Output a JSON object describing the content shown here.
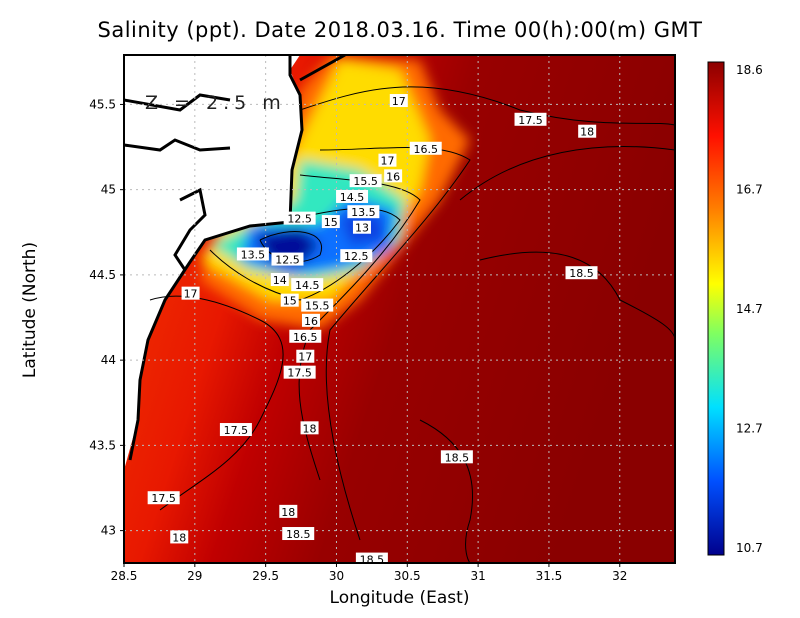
{
  "chart_data": {
    "type": "heatmap",
    "title": "Salinity (ppt). Date 2018.03.16. Time 00(h):00(m) GMT",
    "xlabel": "Longitude (East)",
    "ylabel": "Latitude (North)",
    "annotation": "Z = 2.5 m",
    "xlim": [
      28.5,
      32.39
    ],
    "ylim": [
      42.81,
      45.79
    ],
    "xticks": [
      "28.5",
      "29",
      "29.5",
      "30",
      "30.5",
      "31",
      "31.5",
      "32"
    ],
    "xtick_values": [
      28.5,
      29,
      29.5,
      30,
      30.5,
      31,
      31.5,
      32
    ],
    "yticks": [
      "43",
      "43.5",
      "44",
      "44.5",
      "45",
      "45.5"
    ],
    "ytick_values": [
      43,
      43.5,
      44,
      44.5,
      45,
      45.5
    ],
    "grid": true,
    "colorbar": {
      "min": 10.7,
      "max": 18.6,
      "labels": [
        "18.6",
        "16.7",
        "14.7",
        "12.7",
        "10.7"
      ],
      "colors": [
        "#00008c",
        "#0050ff",
        "#00e0ff",
        "#80ff60",
        "#ffff00",
        "#ff8000",
        "#ff1000",
        "#8c0000"
      ]
    },
    "contour_labels": [
      {
        "text": "17",
        "lon": 30.44,
        "lat": 45.52
      },
      {
        "text": "17.5",
        "lon": 31.37,
        "lat": 45.41
      },
      {
        "text": "18",
        "lon": 31.77,
        "lat": 45.34
      },
      {
        "text": "16.5",
        "lon": 30.63,
        "lat": 45.24
      },
      {
        "text": "17",
        "lon": 30.36,
        "lat": 45.17
      },
      {
        "text": "16",
        "lon": 30.4,
        "lat": 45.09
      },
      {
        "text": "15.5",
        "lon": 30.22,
        "lat": 45.05
      },
      {
        "text": "14.5",
        "lon": 30.11,
        "lat": 45.01
      },
      {
        "text": "13.5",
        "lon": 30.19,
        "lat": 44.95
      },
      {
        "text": "13",
        "lon": 30.18,
        "lat": 44.9
      },
      {
        "text": "12.5",
        "lon": 29.74,
        "lat": 44.83
      },
      {
        "text": "15",
        "lon": 29.96,
        "lat": 44.81
      },
      {
        "text": "13.5",
        "lon": 29.41,
        "lat": 44.62
      },
      {
        "text": "12.5",
        "lon": 29.64,
        "lat": 44.59
      },
      {
        "text": "12.5",
        "lon": 30.14,
        "lat": 44.61
      },
      {
        "text": "14",
        "lon": 29.6,
        "lat": 44.47
      },
      {
        "text": "14.5",
        "lon": 29.73,
        "lat": 44.44
      },
      {
        "text": "15",
        "lon": 29.67,
        "lat": 44.39
      },
      {
        "text": "17",
        "lon": 28.97,
        "lat": 44.39
      },
      {
        "text": "18.5",
        "lon": 31.73,
        "lat": 44.51
      },
      {
        "text": "15.5",
        "lon": 29.85,
        "lat": 44.32
      },
      {
        "text": "16",
        "lon": 29.82,
        "lat": 44.26
      },
      {
        "text": "16.5",
        "lon": 29.78,
        "lat": 44.19
      },
      {
        "text": "17",
        "lon": 29.78,
        "lat": 44.02
      },
      {
        "text": "17.5",
        "lon": 29.74,
        "lat": 43.95
      },
      {
        "text": "17.5",
        "lon": 29.29,
        "lat": 43.59
      },
      {
        "text": "18",
        "lon": 29.81,
        "lat": 43.6
      },
      {
        "text": "18.5",
        "lon": 30.85,
        "lat": 43.43
      },
      {
        "text": "17.5",
        "lon": 28.78,
        "lat": 43.19
      },
      {
        "text": "18",
        "lon": 29.66,
        "lat": 43.11
      },
      {
        "text": "18",
        "lon": 28.89,
        "lat": 42.96
      },
      {
        "text": "18.5",
        "lon": 29.73,
        "lat": 42.98
      },
      {
        "text": "18.5",
        "lon": 30.25,
        "lat": 42.83
      }
    ]
  }
}
